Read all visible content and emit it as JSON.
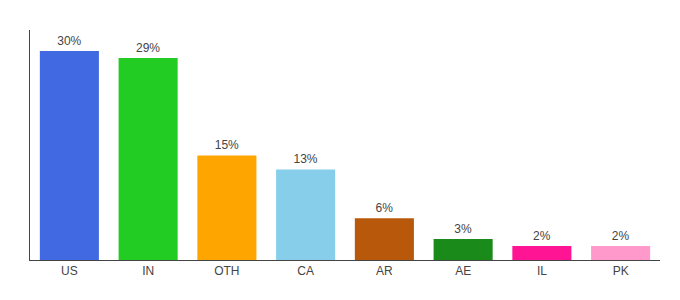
{
  "chart_data": {
    "type": "bar",
    "categories": [
      "US",
      "IN",
      "OTH",
      "CA",
      "AR",
      "AE",
      "IL",
      "PK"
    ],
    "values": [
      30,
      29,
      15,
      13,
      6,
      3,
      2,
      2
    ],
    "value_labels": [
      "30%",
      "29%",
      "15%",
      "13%",
      "6%",
      "3%",
      "2%",
      "2%"
    ],
    "colors": [
      "#4169e1",
      "#22cc22",
      "#ffa500",
      "#87ceeb",
      "#b8580a",
      "#1a8a1a",
      "#ff1493",
      "#ff99cc"
    ],
    "ylim": [
      0,
      33
    ],
    "grid": false,
    "data_labels": true,
    "tick_labels": "x"
  }
}
